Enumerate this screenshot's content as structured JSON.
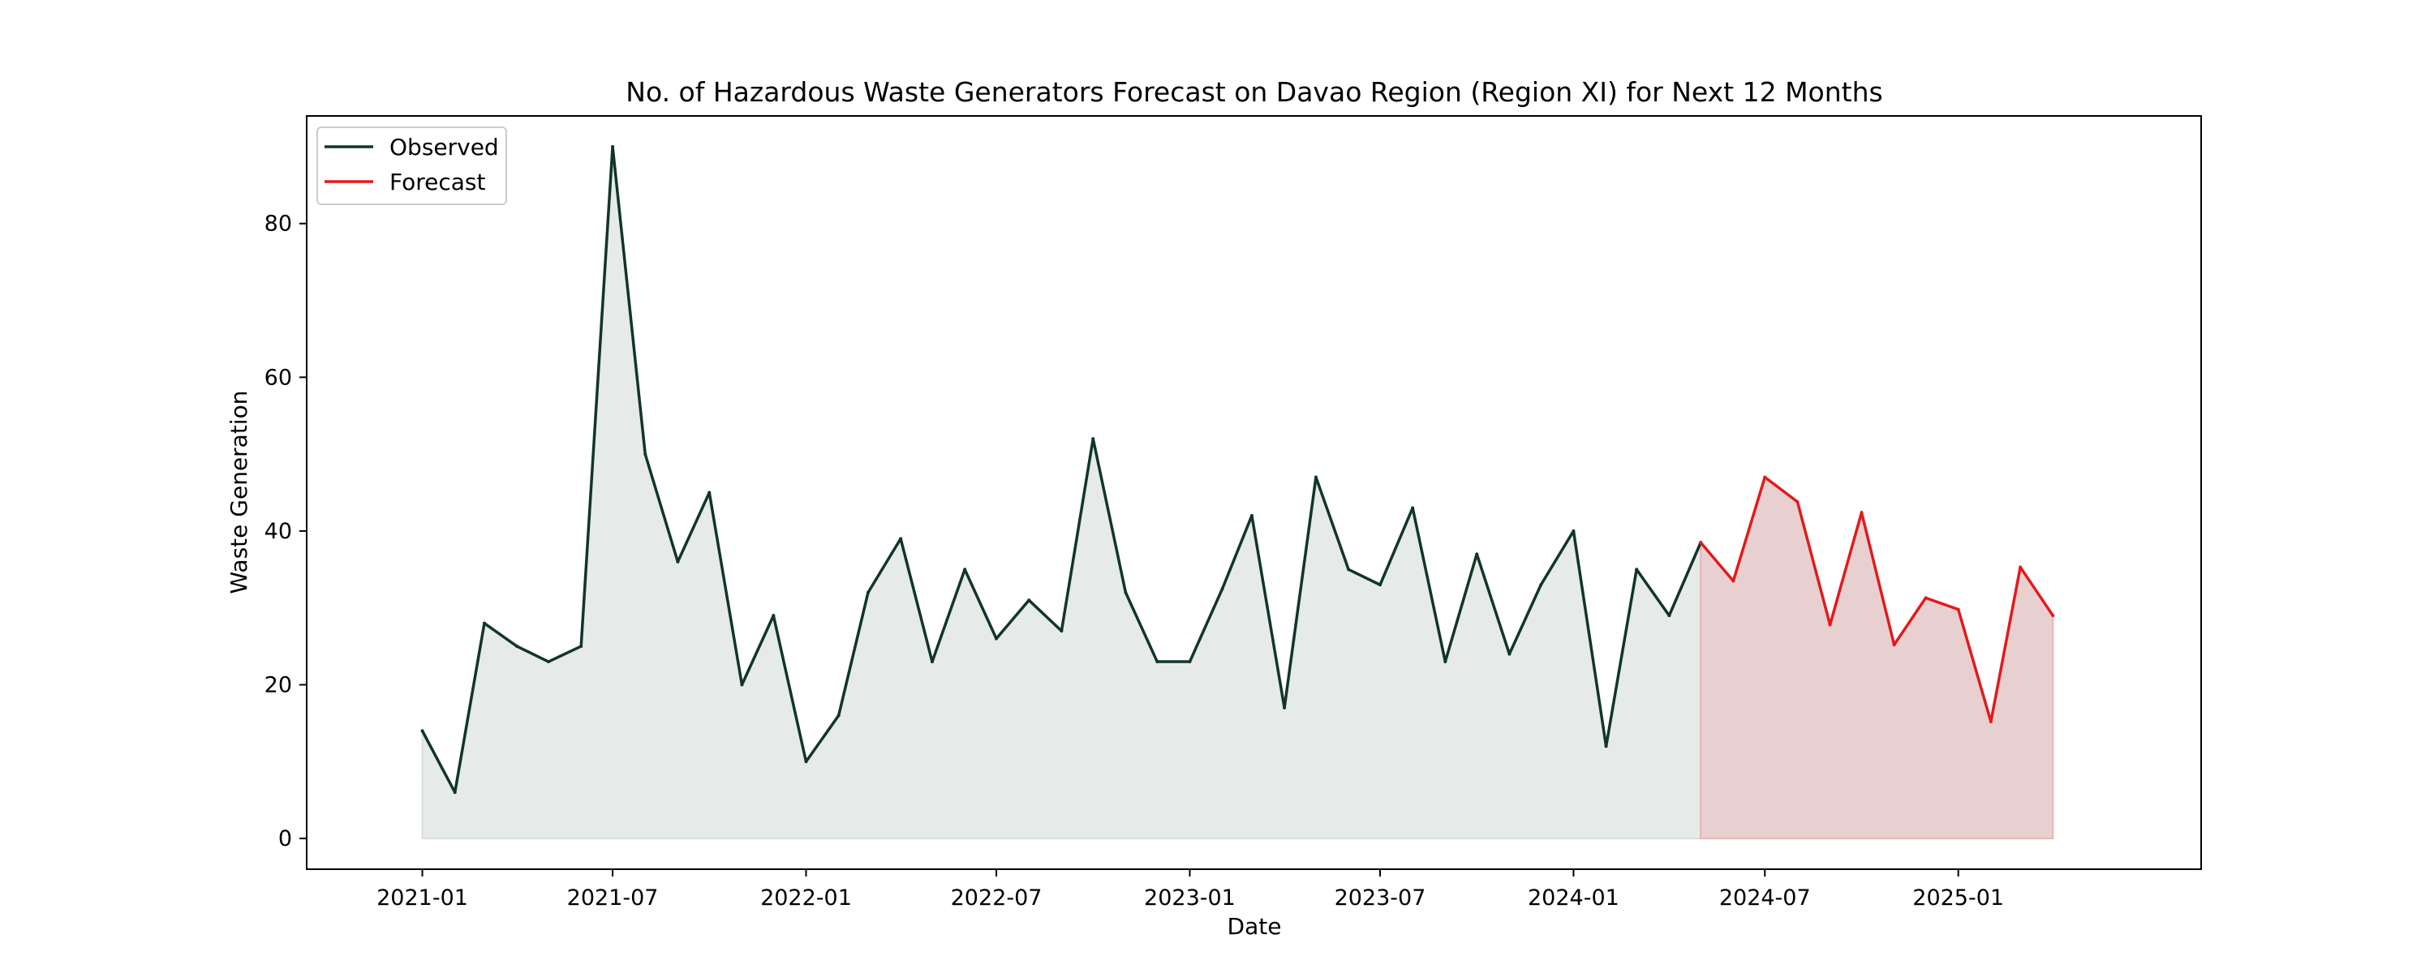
{
  "chart_data": {
    "type": "line",
    "title": "No. of Hazardous Waste Generators Forecast on Davao Region (Region XI) for Next 12 Months",
    "xlabel": "Date",
    "ylabel": "Waste Generation",
    "ylim": [
      -4,
      94
    ],
    "xlim": [
      "2020-09-13",
      "2025-08-20"
    ],
    "x_tick_labels": [
      "2021-01",
      "2021-07",
      "2022-01",
      "2022-07",
      "2023-01",
      "2023-07",
      "2024-01",
      "2024-07",
      "2025-01"
    ],
    "x_tick_dates": [
      "2021-01-01",
      "2021-07-01",
      "2022-01-01",
      "2022-07-01",
      "2023-01-01",
      "2023-07-01",
      "2024-01-01",
      "2024-07-01",
      "2025-01-01"
    ],
    "y_ticks": [
      0,
      20,
      40,
      60,
      80
    ],
    "grid": false,
    "legend": "top-left",
    "series": [
      {
        "name": "Observed",
        "color": "#11352a",
        "fill_color": "#e6eae8",
        "x": [
          "2021-01",
          "2021-02",
          "2021-03",
          "2021-04",
          "2021-05",
          "2021-06",
          "2021-07",
          "2021-08",
          "2021-09",
          "2021-10",
          "2021-11",
          "2021-12",
          "2022-01",
          "2022-02",
          "2022-03",
          "2022-04",
          "2022-05",
          "2022-06",
          "2022-07",
          "2022-08",
          "2022-09",
          "2022-10",
          "2022-11",
          "2022-12",
          "2023-01",
          "2023-02",
          "2023-03",
          "2023-04",
          "2023-05",
          "2023-06",
          "2023-07",
          "2023-08",
          "2023-09",
          "2023-10",
          "2023-11",
          "2023-12",
          "2024-01",
          "2024-02",
          "2024-03",
          "2024-04",
          "2024-05"
        ],
        "y": [
          14,
          6,
          28,
          25,
          23,
          25,
          90,
          50,
          36,
          45,
          20,
          29,
          10,
          16,
          32,
          39,
          23,
          35,
          26,
          31,
          27,
          52,
          32,
          23,
          23,
          32.5,
          42,
          17,
          47,
          35,
          33,
          43,
          23,
          37,
          24,
          33,
          40,
          12,
          35,
          29,
          38.5
        ]
      },
      {
        "name": "Forecast",
        "color": "#e31a1c",
        "fill_color": "#e8d0d0",
        "x": [
          "2024-05",
          "2024-06",
          "2024-07",
          "2024-08",
          "2024-09",
          "2024-10",
          "2024-11",
          "2024-12",
          "2025-01",
          "2025-02",
          "2025-03",
          "2025-04"
        ],
        "y": [
          38.5,
          33.5,
          47,
          43.8,
          27.8,
          42.4,
          25.2,
          31.3,
          29.8,
          15.2,
          35.3,
          29
        ]
      }
    ]
  }
}
